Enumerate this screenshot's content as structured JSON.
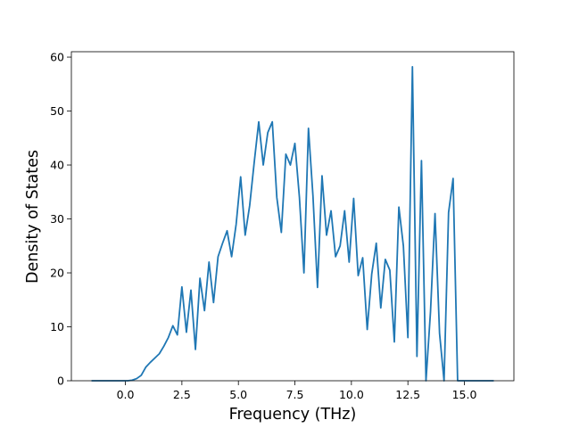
{
  "chart_data": {
    "type": "line",
    "xlabel": "Frequency (THz)",
    "ylabel": "Density of States",
    "x": [
      -1.5,
      -1.3,
      -1.1,
      -0.9,
      -0.7,
      -0.5,
      -0.3,
      -0.1,
      0.1,
      0.3,
      0.5,
      0.7,
      0.9,
      1.1,
      1.3,
      1.5,
      1.7,
      1.9,
      2.1,
      2.3,
      2.5,
      2.7,
      2.9,
      3.1,
      3.3,
      3.5,
      3.7,
      3.9,
      4.1,
      4.3,
      4.5,
      4.7,
      4.9,
      5.1,
      5.3,
      5.5,
      5.7,
      5.9,
      6.1,
      6.3,
      6.5,
      6.7,
      6.9,
      7.1,
      7.3,
      7.5,
      7.7,
      7.9,
      8.1,
      8.3,
      8.5,
      8.7,
      8.9,
      9.1,
      9.3,
      9.5,
      9.7,
      9.9,
      10.1,
      10.3,
      10.5,
      10.7,
      10.9,
      11.1,
      11.3,
      11.5,
      11.7,
      11.9,
      12.1,
      12.3,
      12.5,
      12.7,
      12.9,
      13.1,
      13.3,
      13.5,
      13.7,
      13.9,
      14.1,
      14.3,
      14.5,
      14.7,
      14.9,
      15.1,
      15.3,
      15.5,
      15.7,
      15.9,
      16.1,
      16.3
    ],
    "values": [
      0,
      0,
      0,
      0,
      0,
      0,
      0,
      0,
      0,
      0.1,
      0.4,
      1.0,
      2.5,
      3.4,
      4.2,
      5.0,
      6.4,
      8.0,
      10.2,
      8.5,
      17.4,
      9.0,
      16.8,
      5.8,
      19.0,
      13.0,
      22.0,
      14.5,
      23.0,
      25.5,
      27.8,
      23.0,
      29.0,
      37.8,
      27.0,
      32.5,
      40.5,
      48.0,
      40.0,
      46.0,
      48.0,
      34.0,
      27.5,
      42.0,
      40.0,
      44.0,
      34.0,
      20.0,
      46.8,
      34.2,
      17.3,
      38.0,
      27.0,
      31.5,
      23.0,
      25.0,
      31.5,
      22.0,
      33.8,
      19.5,
      22.8,
      9.5,
      19.8,
      25.5,
      13.5,
      22.5,
      20.5,
      7.2,
      32.2,
      25.0,
      8.0,
      58.2,
      4.5,
      40.8,
      0,
      12.8,
      31.0,
      8.8,
      0,
      31.2,
      37.5,
      0,
      0,
      0,
      0,
      0,
      0,
      0,
      0,
      0
    ],
    "color": "#1f77b4",
    "xlim": [
      -2.39,
      17.19
    ],
    "xticks": [
      {
        "value": 0,
        "label": "0.0"
      },
      2.5,
      {
        "value": 5,
        "label": "5.0"
      },
      7.5,
      {
        "value": 10,
        "label": "10.0"
      },
      12.5,
      {
        "value": 15,
        "label": "15.0"
      }
    ],
    "ylim": [
      0,
      61
    ],
    "yticks": [
      0,
      10,
      20,
      30,
      40,
      50,
      60
    ]
  }
}
